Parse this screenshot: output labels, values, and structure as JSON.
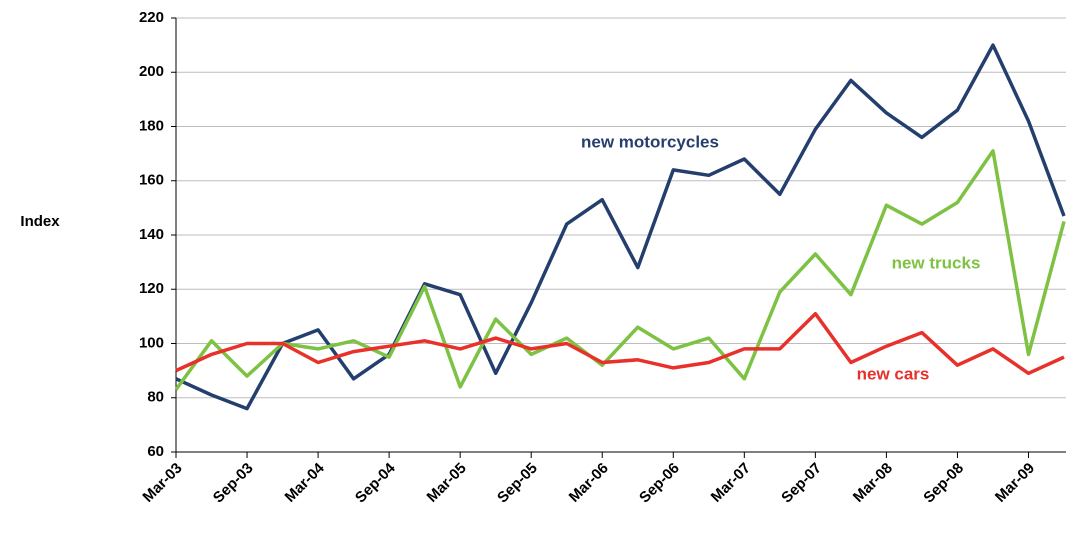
{
  "chart_data": {
    "type": "line",
    "y_label": "Index",
    "categories": [
      "Mar-03",
      null,
      "Sep-03",
      null,
      "Mar-04",
      null,
      "Sep-04",
      null,
      "Mar-05",
      null,
      "Sep-05",
      null,
      "Mar-06",
      null,
      "Sep-06",
      null,
      "Mar-07",
      null,
      "Sep-07",
      null,
      "Mar-08",
      null,
      "Sep-08",
      null,
      "Mar-09",
      null
    ],
    "series": [
      {
        "name": "new motorcycles",
        "color": "#243f6e",
        "values": [
          87,
          81,
          76,
          100,
          105,
          87,
          96,
          122,
          118,
          89,
          115,
          144,
          153,
          128,
          164,
          162,
          168,
          155,
          179,
          197,
          185,
          176,
          186,
          210,
          182,
          147
        ]
      },
      {
        "name": "new trucks",
        "color": "#7dc242",
        "values": [
          83,
          101,
          88,
          100,
          98,
          101,
          95,
          121,
          84,
          109,
          96,
          102,
          92,
          106,
          98,
          102,
          87,
          119,
          133,
          118,
          151,
          144,
          152,
          171,
          96,
          145
        ]
      },
      {
        "name": "new cars",
        "color": "#e8312a",
        "values": [
          90,
          96,
          100,
          100,
          93,
          97,
          99,
          101,
          98,
          102,
          98,
          100,
          93,
          94,
          91,
          93,
          98,
          98,
          111,
          93,
          99,
          104,
          92,
          98,
          89,
          95
        ]
      }
    ],
    "ylim": [
      60,
      220
    ],
    "yticks": [
      60,
      80,
      100,
      120,
      140,
      160,
      180,
      200,
      220
    ],
    "grid": true
  }
}
